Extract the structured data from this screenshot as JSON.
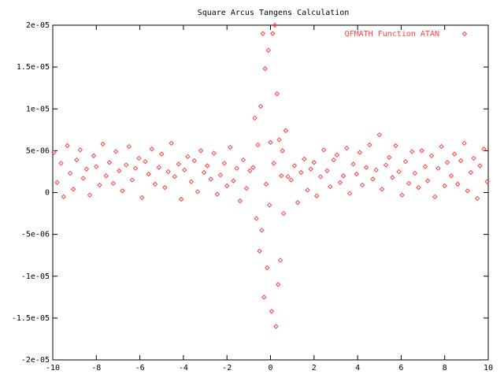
{
  "chart_data": {
    "type": "scatter",
    "title": "Square Arcus Tangens Calculation",
    "xlim": [
      -10,
      10
    ],
    "xticks": [
      -10,
      -8,
      -6,
      -4,
      -2,
      0,
      2,
      4,
      6,
      8,
      10
    ],
    "ylim": [
      -2e-05,
      2e-05
    ],
    "yticks": [
      {
        "value": -2e-05,
        "label": "-2e-05"
      },
      {
        "value": -1.5e-05,
        "label": "-1.5e-05"
      },
      {
        "value": -1e-05,
        "label": "-1e-05"
      },
      {
        "value": -5e-06,
        "label": "-5e-06"
      },
      0,
      {
        "value": 5e-06,
        "label": "5e-06"
      },
      {
        "value": 1e-05,
        "label": "1e-05"
      },
      {
        "value": 1.5e-05,
        "label": "1.5e-05"
      },
      {
        "value": 2e-05,
        "label": "2e-05"
      }
    ],
    "grid": false,
    "legend": "top-right",
    "series": [
      {
        "name": "QFMATH Function ATAN",
        "color": "#ff4040",
        "x": [
          -9.95,
          -9.8,
          -9.62,
          -9.5,
          -9.33,
          -9.2,
          -9.05,
          -8.9,
          -8.74,
          -8.6,
          -8.45,
          -8.3,
          -8.12,
          -8.0,
          -7.85,
          -7.7,
          -7.55,
          -7.4,
          -7.22,
          -7.1,
          -6.95,
          -6.8,
          -6.63,
          -6.5,
          -6.35,
          -6.2,
          -6.04,
          -5.9,
          -5.75,
          -5.6,
          -5.45,
          -5.3,
          -5.12,
          -5.0,
          -4.85,
          -4.7,
          -4.55,
          -4.4,
          -4.22,
          -4.1,
          -3.95,
          -3.8,
          -3.64,
          -3.5,
          -3.35,
          -3.2,
          -3.05,
          -2.9,
          -2.74,
          -2.6,
          -2.45,
          -2.3,
          -2.12,
          -2.0,
          -1.85,
          -1.7,
          -1.55,
          -1.4,
          -1.25,
          -1.1,
          -0.95,
          -0.8,
          -0.72,
          -0.65,
          -0.58,
          -0.5,
          -0.45,
          -0.4,
          -0.35,
          -0.3,
          -0.25,
          -0.2,
          -0.15,
          -0.1,
          -0.05,
          0.0,
          0.05,
          0.1,
          0.15,
          0.2,
          0.25,
          0.3,
          0.35,
          0.4,
          0.45,
          0.5,
          0.55,
          0.6,
          0.7,
          0.8,
          0.95,
          1.1,
          1.25,
          1.4,
          1.55,
          1.7,
          1.85,
          2.0,
          2.12,
          2.3,
          2.45,
          2.6,
          2.74,
          2.9,
          3.05,
          3.2,
          3.35,
          3.5,
          3.64,
          3.8,
          3.95,
          4.1,
          4.22,
          4.4,
          4.55,
          4.7,
          4.85,
          5.0,
          5.12,
          5.3,
          5.45,
          5.6,
          5.75,
          5.9,
          6.04,
          6.2,
          6.35,
          6.5,
          6.63,
          6.8,
          6.95,
          7.1,
          7.22,
          7.4,
          7.55,
          7.7,
          7.85,
          8.0,
          8.12,
          8.3,
          8.45,
          8.6,
          8.74,
          8.9,
          9.05,
          9.2,
          9.33,
          9.5,
          9.62,
          9.8,
          9.95
        ],
        "values": [
          4.8e-06,
          1.2e-06,
          3.5e-06,
          -5e-07,
          5.6e-06,
          2.3e-06,
          4e-07,
          3.9e-06,
          5.1e-06,
          1.7e-06,
          2.8e-06,
          -3e-07,
          4.4e-06,
          3.1e-06,
          9e-07,
          5.8e-06,
          2e-06,
          3.6e-06,
          1.1e-06,
          4.9e-06,
          2.6e-06,
          2e-07,
          3.3e-06,
          5.5e-06,
          1.5e-06,
          2.9e-06,
          4.1e-06,
          -6e-07,
          3.7e-06,
          2.2e-06,
          5.2e-06,
          1e-06,
          3e-06,
          4.6e-06,
          6e-07,
          2.5e-06,
          5.9e-06,
          1.9e-06,
          3.4e-06,
          -8e-07,
          2.7e-06,
          4.3e-06,
          1.3e-06,
          3.8e-06,
          1e-07,
          5e-06,
          2.4e-06,
          3.2e-06,
          1.6e-06,
          4.7e-06,
          -2e-07,
          2.1e-06,
          3.5e-06,
          8e-07,
          5.4e-06,
          1.4e-06,
          2.9e-06,
          -1e-06,
          3.9e-06,
          5e-07,
          2.6e-06,
          3e-06,
          8.9e-06,
          -3.1e-06,
          5.7e-06,
          -7e-06,
          1.03e-05,
          -4.5e-06,
          1.9e-05,
          -1.25e-05,
          1.48e-05,
          1e-06,
          -9e-06,
          1.7e-05,
          -1.5e-06,
          6e-06,
          -1.42e-05,
          1.9e-05,
          3.5e-06,
          2e-05,
          -1.6e-05,
          1.18e-05,
          -1.1e-05,
          6.3e-06,
          -8.1e-06,
          2e-06,
          5e-06,
          -2.5e-06,
          7.4e-06,
          1.9e-06,
          1.5e-06,
          3.2e-06,
          -1.2e-06,
          2.4e-06,
          4e-06,
          3e-07,
          2.8e-06,
          3.6e-06,
          -4e-07,
          1.9e-06,
          5.1e-06,
          2.6e-06,
          7e-07,
          3.9e-06,
          4.5e-06,
          1.2e-06,
          2e-06,
          5.3e-06,
          -1e-07,
          3.4e-06,
          2.2e-06,
          4.8e-06,
          9e-07,
          3e-06,
          5.7e-06,
          1.6e-06,
          2.7e-06,
          6.9e-06,
          4e-07,
          3.3e-06,
          4.2e-06,
          1.8e-06,
          5.6e-06,
          2.5e-06,
          -3e-07,
          3.7e-06,
          1.1e-06,
          4.9e-06,
          2.3e-06,
          6e-07,
          5e-06,
          3.1e-06,
          1.4e-06,
          4.4e-06,
          -5e-07,
          2.9e-06,
          5.5e-06,
          8e-07,
          3.6e-06,
          2e-06,
          4.6e-06,
          1e-06,
          3.8e-06,
          5.9e-06,
          2e-07,
          2.4e-06,
          4.1e-06,
          -7e-07,
          3.2e-06,
          5.2e-06,
          1.3e-06
        ]
      }
    ]
  }
}
